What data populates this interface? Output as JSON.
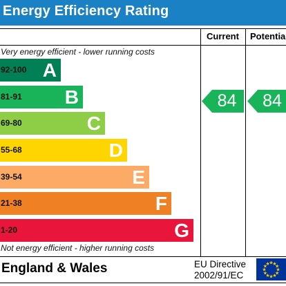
{
  "title": "Energy Efficiency Rating",
  "columns": {
    "current": "Current",
    "potential": "Potential"
  },
  "captions": {
    "top": "Very energy efficient - lower running costs",
    "bottom": "Not energy efficient - higher running costs"
  },
  "bands": [
    {
      "range": "92-100",
      "letter": "A",
      "color": "#008054"
    },
    {
      "range": "81-91",
      "letter": "B",
      "color": "#19b459"
    },
    {
      "range": "69-80",
      "letter": "C",
      "color": "#8dce46"
    },
    {
      "range": "55-68",
      "letter": "D",
      "color": "#ffd500"
    },
    {
      "range": "39-54",
      "letter": "E",
      "color": "#fcaa65"
    },
    {
      "range": "21-38",
      "letter": "F",
      "color": "#ef8023"
    },
    {
      "range": "1-20",
      "letter": "G",
      "color": "#e9153b"
    }
  ],
  "current_rating": {
    "value": "84",
    "band": "B",
    "color": "#19b459"
  },
  "potential_rating": {
    "value": "84",
    "band": "B",
    "color": "#19b459"
  },
  "footer": {
    "region": "England & Wales",
    "directive_line1": "EU Directive",
    "directive_line2": "2002/91/EC"
  },
  "header_color": "#1a82c4"
}
